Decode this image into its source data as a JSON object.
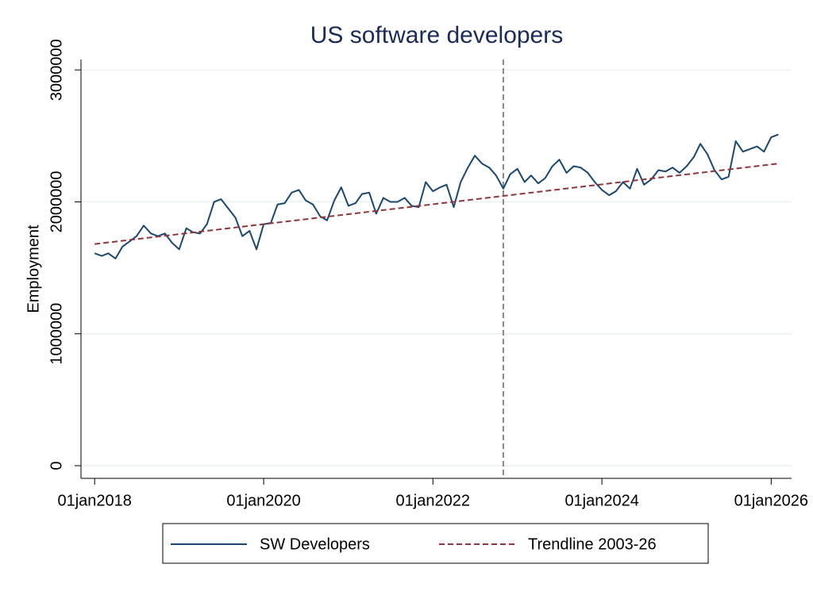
{
  "chart_data": {
    "type": "line",
    "title": "US software developers",
    "y_label": "Employment",
    "x": [
      "2018-01-01",
      "2018-02-01",
      "2018-03-01",
      "2018-04-01",
      "2018-05-01",
      "2018-06-01",
      "2018-07-01",
      "2018-08-01",
      "2018-09-01",
      "2018-10-01",
      "2018-11-01",
      "2018-12-01",
      "2019-01-01",
      "2019-02-01",
      "2019-03-01",
      "2019-04-01",
      "2019-05-01",
      "2019-06-01",
      "2019-07-01",
      "2019-08-01",
      "2019-09-01",
      "2019-10-01",
      "2019-11-01",
      "2019-12-01",
      "2020-01-01",
      "2020-02-01",
      "2020-03-01",
      "2020-04-01",
      "2020-05-01",
      "2020-06-01",
      "2020-07-01",
      "2020-08-01",
      "2020-09-01",
      "2020-10-01",
      "2020-11-01",
      "2020-12-01",
      "2021-01-01",
      "2021-02-01",
      "2021-03-01",
      "2021-04-01",
      "2021-05-01",
      "2021-06-01",
      "2021-07-01",
      "2021-08-01",
      "2021-09-01",
      "2021-10-01",
      "2021-11-01",
      "2021-12-01",
      "2022-01-01",
      "2022-02-01",
      "2022-03-01",
      "2022-04-01",
      "2022-05-01",
      "2022-06-01",
      "2022-07-01",
      "2022-08-01",
      "2022-09-01",
      "2022-10-01",
      "2022-11-01",
      "2022-12-01",
      "2023-01-01",
      "2023-02-01",
      "2023-03-01",
      "2023-04-01",
      "2023-05-01",
      "2023-06-01",
      "2023-07-01",
      "2023-08-01",
      "2023-09-01",
      "2023-10-01",
      "2023-11-01",
      "2023-12-01",
      "2024-01-01",
      "2024-02-01",
      "2024-03-01",
      "2024-04-01",
      "2024-05-01",
      "2024-06-01",
      "2024-07-01",
      "2024-08-01",
      "2024-09-01",
      "2024-10-01",
      "2024-11-01",
      "2024-12-01",
      "2025-01-01",
      "2025-02-01",
      "2025-03-01",
      "2025-04-01",
      "2025-05-01",
      "2025-06-01",
      "2025-07-01",
      "2025-08-01",
      "2025-09-01",
      "2025-10-01",
      "2025-11-01",
      "2025-12-01",
      "2026-01-01",
      "2026-02-01"
    ],
    "series": [
      {
        "name": "SW Developers",
        "color": "#1a476f",
        "dash": false,
        "values": [
          1610000,
          1590000,
          1610000,
          1570000,
          1660000,
          1700000,
          1740000,
          1820000,
          1760000,
          1740000,
          1760000,
          1690000,
          1640000,
          1800000,
          1770000,
          1760000,
          1830000,
          2000000,
          2020000,
          1950000,
          1880000,
          1740000,
          1780000,
          1640000,
          1830000,
          1840000,
          1980000,
          1990000,
          2070000,
          2090000,
          2010000,
          1980000,
          1890000,
          1860000,
          2010000,
          2110000,
          1970000,
          1990000,
          2060000,
          2070000,
          1910000,
          2030000,
          2000000,
          2000000,
          2030000,
          1970000,
          1960000,
          2150000,
          2080000,
          2110000,
          2130000,
          1960000,
          2150000,
          2260000,
          2350000,
          2290000,
          2260000,
          2200000,
          2100000,
          2210000,
          2250000,
          2150000,
          2200000,
          2140000,
          2180000,
          2270000,
          2320000,
          2220000,
          2270000,
          2260000,
          2220000,
          2150000,
          2090000,
          2050000,
          2080000,
          2150000,
          2100000,
          2250000,
          2130000,
          2170000,
          2240000,
          2230000,
          2260000,
          2220000,
          2270000,
          2340000,
          2440000,
          2360000,
          2240000,
          2170000,
          2190000,
          2460000,
          2380000,
          2400000,
          2420000,
          2380000,
          2490000,
          2510000
        ]
      },
      {
        "name": "Trendline 2003-26",
        "color": "#90353b",
        "dash": true,
        "x": [
          "2018-01-01",
          "2026-02-01"
        ],
        "values": [
          1680000,
          2290000
        ]
      }
    ],
    "xlim": [
      "2017-11-03",
      "2026-03-30"
    ],
    "xticks": [
      {
        "value": "2018-01-01",
        "label": "01jan2018"
      },
      {
        "value": "2020-01-01",
        "label": "01jan2020"
      },
      {
        "value": "2022-01-01",
        "label": "01jan2022"
      },
      {
        "value": "2024-01-01",
        "label": "01jan2024"
      },
      {
        "value": "2026-01-01",
        "label": "01jan2026"
      }
    ],
    "ylim": [
      -96000,
      3079000
    ],
    "yticks": [
      0,
      1000000,
      2000000,
      3000000
    ],
    "grid": true,
    "vline": "2022-11-01",
    "legend": "bottom"
  }
}
